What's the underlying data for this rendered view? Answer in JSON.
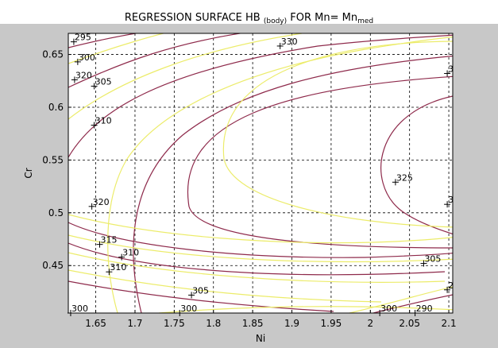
{
  "title": {
    "prefix": "REGRESSION SURFACE HB ",
    "sub_body": "(body)",
    "middle": " FOR Mn= Mn",
    "sub_med": "med"
  },
  "chart_data": {
    "type": "contour",
    "xlabel": "Ni",
    "ylabel": "Cr",
    "xlim": [
      1.615,
      2.105
    ],
    "ylim": [
      0.405,
      0.67
    ],
    "grid": true,
    "x_ticks": [
      "1.65",
      "1.7",
      "1.75",
      "1.8",
      "1.85",
      "1.9",
      "1.95",
      "2",
      "2.05",
      "2.1"
    ],
    "y_ticks": [
      "0.45",
      "0.5",
      "0.55",
      "0.6",
      "0.65"
    ],
    "colors": {
      "contour_dark": "#8e2a4b",
      "contour_light": "#ecec6a",
      "grid": "#000000",
      "figure_bg": "#c8c8c8"
    },
    "contour_labels": [
      {
        "text": "295",
        "x": 1.622,
        "y": 0.662
      },
      {
        "text": "300",
        "x": 1.627,
        "y": 0.643
      },
      {
        "text": "320",
        "x": 1.623,
        "y": 0.626
      },
      {
        "text": "305",
        "x": 1.648,
        "y": 0.62
      },
      {
        "text": "310",
        "x": 1.648,
        "y": 0.583
      },
      {
        "text": "330",
        "x": 1.885,
        "y": 0.658
      },
      {
        "text": "3",
        "x": 2.098,
        "y": 0.632
      },
      {
        "text": "325",
        "x": 2.032,
        "y": 0.529
      },
      {
        "text": "3",
        "x": 2.098,
        "y": 0.508
      },
      {
        "text": "320",
        "x": 1.645,
        "y": 0.506
      },
      {
        "text": "315",
        "x": 1.655,
        "y": 0.47
      },
      {
        "text": "310",
        "x": 1.683,
        "y": 0.458
      },
      {
        "text": "310",
        "x": 1.667,
        "y": 0.444
      },
      {
        "text": "305",
        "x": 1.772,
        "y": 0.422
      },
      {
        "text": "305",
        "x": 2.068,
        "y": 0.452
      },
      {
        "text": "2",
        "x": 2.098,
        "y": 0.427
      },
      {
        "text": "300",
        "x": 1.618,
        "y": 0.405
      },
      {
        "text": "300",
        "x": 1.757,
        "y": 0.405
      },
      {
        "text": "300",
        "x": 2.012,
        "y": 0.405
      },
      {
        "text": "290",
        "x": 2.057,
        "y": 0.405
      }
    ]
  }
}
